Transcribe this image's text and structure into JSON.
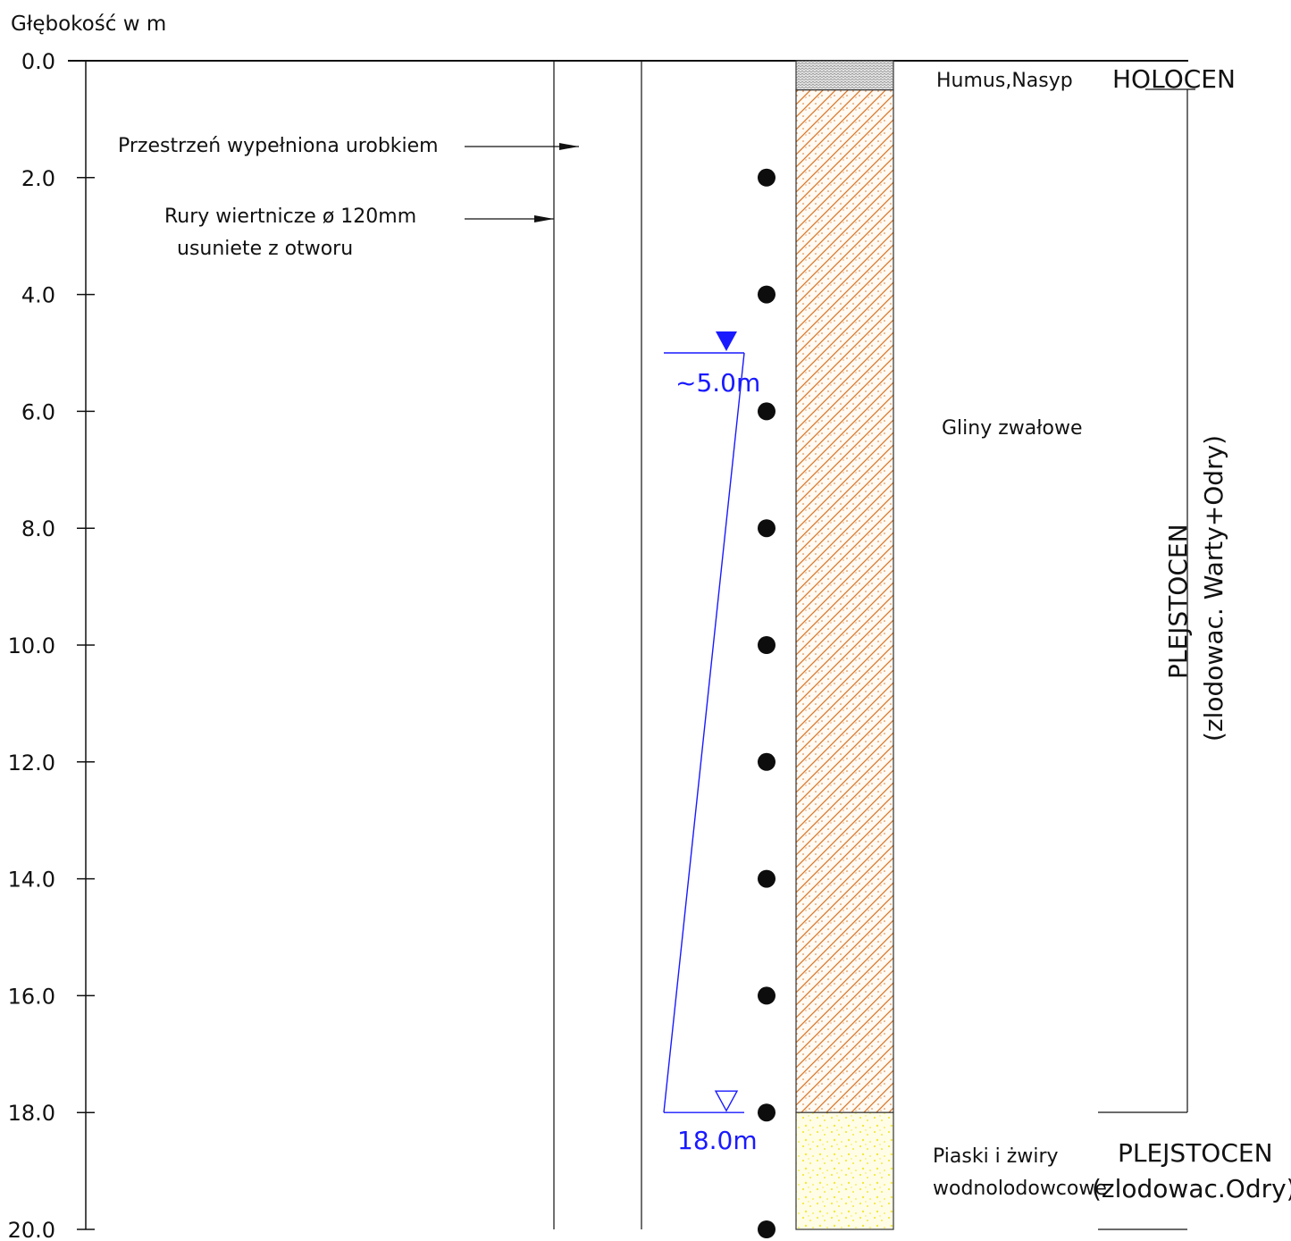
{
  "axis": {
    "title": "Głębokość w m",
    "min": 0,
    "max": 20,
    "ticks": [
      "0.0",
      "2.0",
      "4.0",
      "6.0",
      "8.0",
      "10.0",
      "12.0",
      "14.0",
      "16.0",
      "18.0",
      "20.0"
    ]
  },
  "annotations": {
    "backfill_label": "Przestrzeń wypełniona urobkiem",
    "casing_label_line1": "Rury wiertnicze ø 120mm",
    "casing_label_line2": "usuniete z otworu"
  },
  "layers": [
    {
      "top": 0.0,
      "bottom": 0.5,
      "name": "Humus,Nasyp",
      "pattern": "humus",
      "color": "#d9d9d9"
    },
    {
      "top": 0.5,
      "bottom": 18.0,
      "name": "Gliny zwałowe",
      "pattern": "clay",
      "color": "#d9782c"
    },
    {
      "top": 18.0,
      "bottom": 20.0,
      "name_line1": "Piaski i żwiry",
      "name_line2": "wodnolodowcowe",
      "pattern": "sand",
      "color": "#ffff66"
    }
  ],
  "stratigraphy": {
    "holocene": "HOLOCEN",
    "pleistocene_upper_line1": "PLEJSTOCEN",
    "pleistocene_upper_line2": "(zlodowac. Warty+Odry)",
    "pleistocene_lower_line1": "PLEJSTOCEN",
    "pleistocene_lower_line2": "(zlodowac.Odry)"
  },
  "water": {
    "stabilized_depth": 5.0,
    "stabilized_label": "~5.0m",
    "encountered_depth": 18.0,
    "encountered_label": "18.0m",
    "color": "#1a1aff"
  },
  "samples": {
    "depths": [
      2,
      4,
      6,
      8,
      10,
      12,
      14,
      16,
      18,
      20
    ]
  }
}
